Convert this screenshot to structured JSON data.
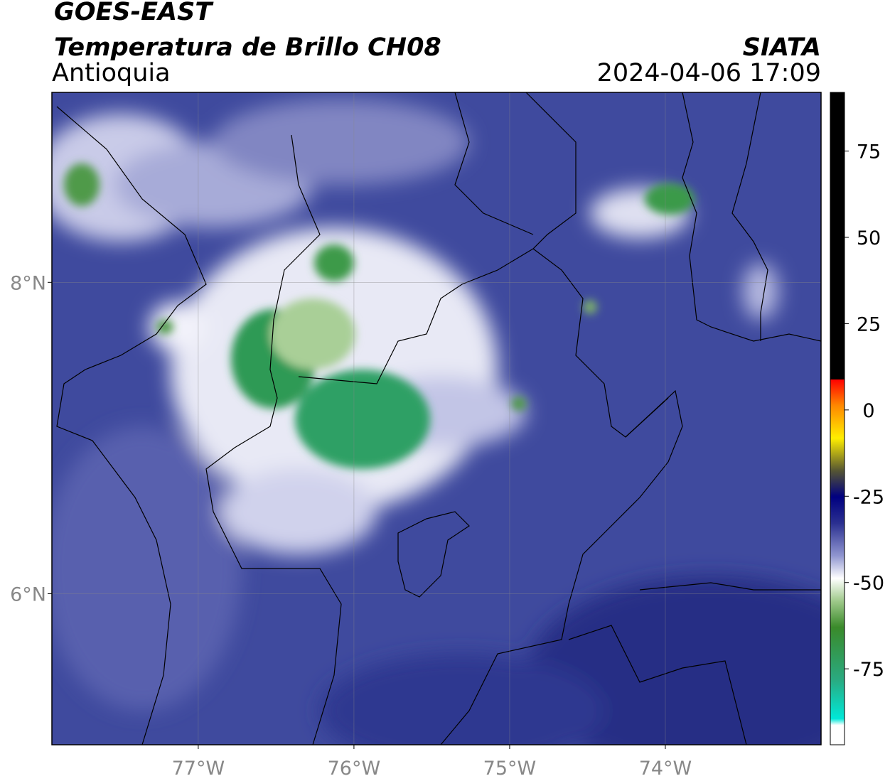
{
  "header": {
    "title": "GOES-EAST",
    "subtitle": "Temperatura de Brillo CH08",
    "region": "Antioquia",
    "source": "SIATA",
    "datetime": "2024-04-06 17:09"
  },
  "map": {
    "xlim": [
      -77.94,
      -73.0
    ],
    "ylim": [
      5.03,
      9.22
    ],
    "xticks": [
      {
        "value": -77,
        "label": "77°W"
      },
      {
        "value": -76,
        "label": "76°W"
      },
      {
        "value": -75,
        "label": "75°W"
      },
      {
        "value": -74,
        "label": "74°W"
      }
    ],
    "yticks": [
      {
        "value": 6,
        "label": "6°N"
      },
      {
        "value": 8,
        "label": "8°N"
      }
    ],
    "grid": true
  },
  "colorbar": {
    "lim": [
      -97,
      92
    ],
    "ticks": [
      -75,
      -50,
      -25,
      0,
      25,
      50,
      75
    ]
  }
}
